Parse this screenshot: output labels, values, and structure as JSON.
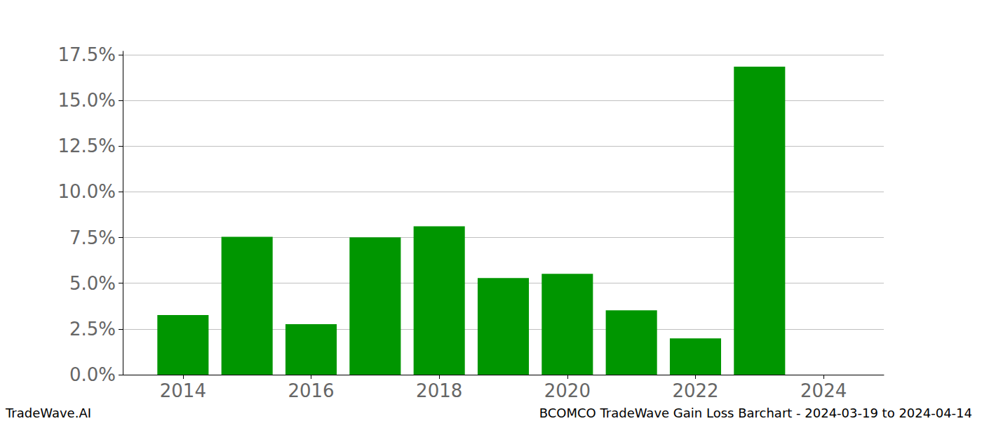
{
  "chart_data": {
    "type": "bar",
    "title": "BCOMCO TradeWave Gain Loss Barchart - 2024-03-19 to 2024-04-14",
    "annotations": [
      "TradeWave.AI"
    ],
    "x": [
      2014,
      2015,
      2016,
      2017,
      2018,
      2019,
      2020,
      2021,
      2022,
      2023,
      2024
    ],
    "values": [
      3.26,
      7.54,
      2.76,
      7.51,
      8.12,
      5.29,
      5.52,
      3.52,
      1.99,
      16.85,
      0
    ],
    "color": "#009600",
    "xlim": [
      2013.06,
      2024.94
    ],
    "xticks": [
      2014,
      2016,
      2018,
      2020,
      2022,
      2024
    ],
    "ylim": [
      0,
      17.69
    ],
    "yticks": [
      {
        "value": 0,
        "label": "0.0%"
      },
      {
        "value": 2.5,
        "label": "2.5%"
      },
      {
        "value": 5,
        "label": "5.0%"
      },
      {
        "value": 7.5,
        "label": "7.5%"
      },
      {
        "value": 10,
        "label": "10.0%"
      },
      {
        "value": 12.5,
        "label": "12.5%"
      },
      {
        "value": 15,
        "label": "15.0%"
      },
      {
        "value": 17.5,
        "label": "17.5%"
      }
    ],
    "grid": true
  }
}
